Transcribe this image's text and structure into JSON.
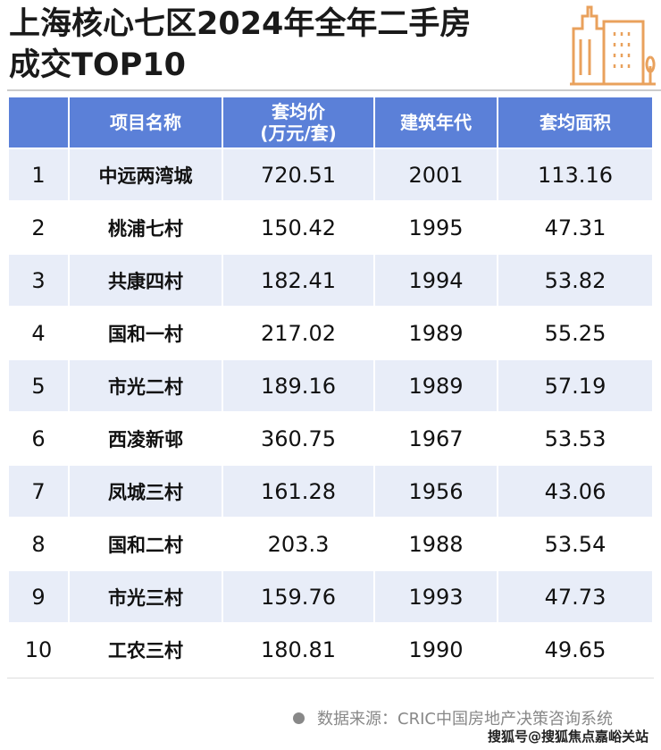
{
  "title_line1": "上海核心七区2024年全年二手房",
  "title_line2": "成交TOP10",
  "logo_icon": "city-buildings-icon",
  "accent_color": "#e9a15c",
  "header_color": "#5b80d8",
  "columns": [
    "",
    "项目名称",
    "套均价\n(万元/套)",
    "建筑年代",
    "套均面积"
  ],
  "columns_split": {
    "price_line1": "套均价",
    "price_line2": "(万元/套)"
  },
  "rows": [
    [
      "1",
      "中远两湾城",
      "720.51",
      "2001",
      "113.16"
    ],
    [
      "2",
      "桃浦七村",
      "150.42",
      "1995",
      "47.31"
    ],
    [
      "3",
      "共康四村",
      "182.41",
      "1994",
      "53.82"
    ],
    [
      "4",
      "国和一村",
      "217.02",
      "1989",
      "55.25"
    ],
    [
      "5",
      "市光二村",
      "189.16",
      "1989",
      "57.19"
    ],
    [
      "6",
      "西凌新邨",
      "360.75",
      "1967",
      "53.53"
    ],
    [
      "7",
      "凤城三村",
      "161.28",
      "1956",
      "43.06"
    ],
    [
      "8",
      "国和二村",
      "203.3",
      "1988",
      "53.54"
    ],
    [
      "9",
      "市光三村",
      "159.76",
      "1993",
      "47.73"
    ],
    [
      "10",
      "工农三村",
      "180.81",
      "1990",
      "49.65"
    ]
  ],
  "source": "数据来源：CRIC中国房地产决策咨询系统",
  "watermark": "搜狐号@搜狐焦点嘉峪关站"
}
